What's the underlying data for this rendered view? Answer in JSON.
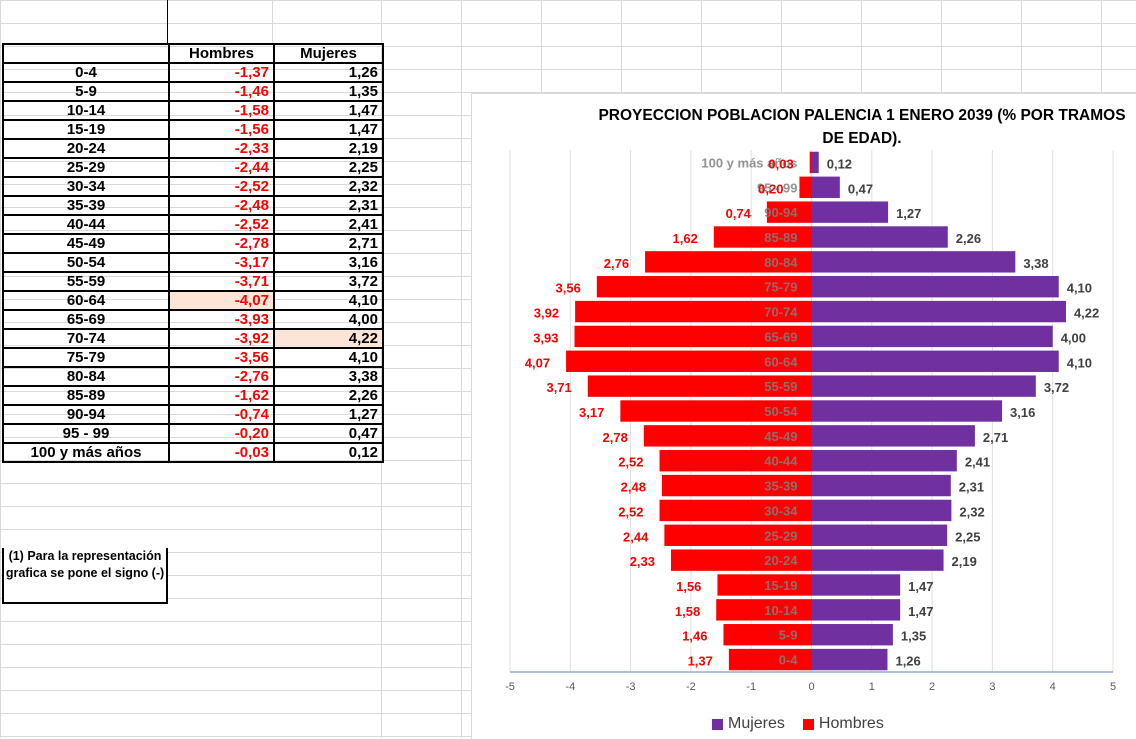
{
  "table": {
    "headers": {
      "age": "",
      "hombres": "Hombres",
      "mujeres": "Mujeres"
    },
    "rows": [
      {
        "age": "0-4",
        "h": "-1,37",
        "m": "1,26"
      },
      {
        "age": "5-9",
        "h": "-1,46",
        "m": "1,35"
      },
      {
        "age": "10-14",
        "h": "-1,58",
        "m": "1,47"
      },
      {
        "age": "15-19",
        "h": "-1,56",
        "m": "1,47"
      },
      {
        "age": "20-24",
        "h": "-2,33",
        "m": "2,19"
      },
      {
        "age": "25-29",
        "h": "-2,44",
        "m": "2,25"
      },
      {
        "age": "30-34",
        "h": "-2,52",
        "m": "2,32"
      },
      {
        "age": "35-39",
        "h": "-2,48",
        "m": "2,31"
      },
      {
        "age": "40-44",
        "h": "-2,52",
        "m": "2,41"
      },
      {
        "age": "45-49",
        "h": "-2,78",
        "m": "2,71"
      },
      {
        "age": "50-54",
        "h": "-3,17",
        "m": "3,16"
      },
      {
        "age": "55-59",
        "h": "-3,71",
        "m": "3,72"
      },
      {
        "age": "60-64",
        "h": "-4,07",
        "m": "4,10"
      },
      {
        "age": "65-69",
        "h": "-3,93",
        "m": "4,00"
      },
      {
        "age": "70-74",
        "h": "-3,92",
        "m": "4,22"
      },
      {
        "age": "75-79",
        "h": "-3,56",
        "m": "4,10"
      },
      {
        "age": "80-84",
        "h": "-2,76",
        "m": "3,38"
      },
      {
        "age": "85-89",
        "h": "-1,62",
        "m": "2,26"
      },
      {
        "age": "90-94",
        "h": "-0,74",
        "m": "1,27"
      },
      {
        "age": "95 - 99",
        "h": "-0,20",
        "m": "0,47"
      },
      {
        "age": "100 y más años",
        "h": "-0,03",
        "m": "0,12"
      }
    ],
    "note": "(1) Para la representación grafica se pone el signo (-)"
  },
  "chart_data": {
    "type": "bar",
    "orientation": "horizontal",
    "title": "PROYECCION POBLACION PALENCIA 1 ENERO 2039 (% POR TRAMOS DE EDAD).",
    "categories": [
      "100 y más años",
      "95 - 99",
      "90-94",
      "85-89",
      "80-84",
      "75-79",
      "70-74",
      "65-69",
      "60-64",
      "55-59",
      "50-54",
      "45-49",
      "40-44",
      "35-39",
      "30-34",
      "25-29",
      "20-24",
      "15-19",
      "10-14",
      "5-9",
      "0-4"
    ],
    "series": [
      {
        "name": "Hombres",
        "color": "#ff0000",
        "values": [
          -0.03,
          -0.2,
          -0.74,
          -1.62,
          -2.76,
          -3.56,
          -3.92,
          -3.93,
          -4.07,
          -3.71,
          -3.17,
          -2.78,
          -2.52,
          -2.48,
          -2.52,
          -2.44,
          -2.33,
          -1.56,
          -1.58,
          -1.46,
          -1.37
        ],
        "labels": [
          "0,03",
          "0,20",
          "0,74",
          "1,62",
          "2,76",
          "3,56",
          "3,92",
          "3,93",
          "4,07",
          "3,71",
          "3,17",
          "2,78",
          "2,52",
          "2,48",
          "2,52",
          "2,44",
          "2,33",
          "1,56",
          "1,58",
          "1,46",
          "1,37"
        ]
      },
      {
        "name": "Mujeres",
        "color": "#7030a0",
        "values": [
          0.12,
          0.47,
          1.27,
          2.26,
          3.38,
          4.1,
          4.22,
          4.0,
          4.1,
          3.72,
          3.16,
          2.71,
          2.41,
          2.31,
          2.32,
          2.25,
          2.19,
          1.47,
          1.47,
          1.35,
          1.26
        ],
        "labels": [
          "0,12",
          "0,47",
          "1,27",
          "2,26",
          "3,38",
          "4,10",
          "4,22",
          "4,00",
          "4,10",
          "3,72",
          "3,16",
          "2,71",
          "2,41",
          "2,31",
          "2,32",
          "2,25",
          "2,19",
          "1,47",
          "1,47",
          "1,35",
          "1,26"
        ]
      }
    ],
    "xlim": [
      -5,
      5
    ],
    "xticks": [
      -5,
      -4,
      -3,
      -2,
      -1,
      0,
      1,
      2,
      3,
      4,
      5
    ],
    "legend": [
      "Mujeres",
      "Hombres"
    ],
    "legend_position": "bottom",
    "grid": true
  }
}
